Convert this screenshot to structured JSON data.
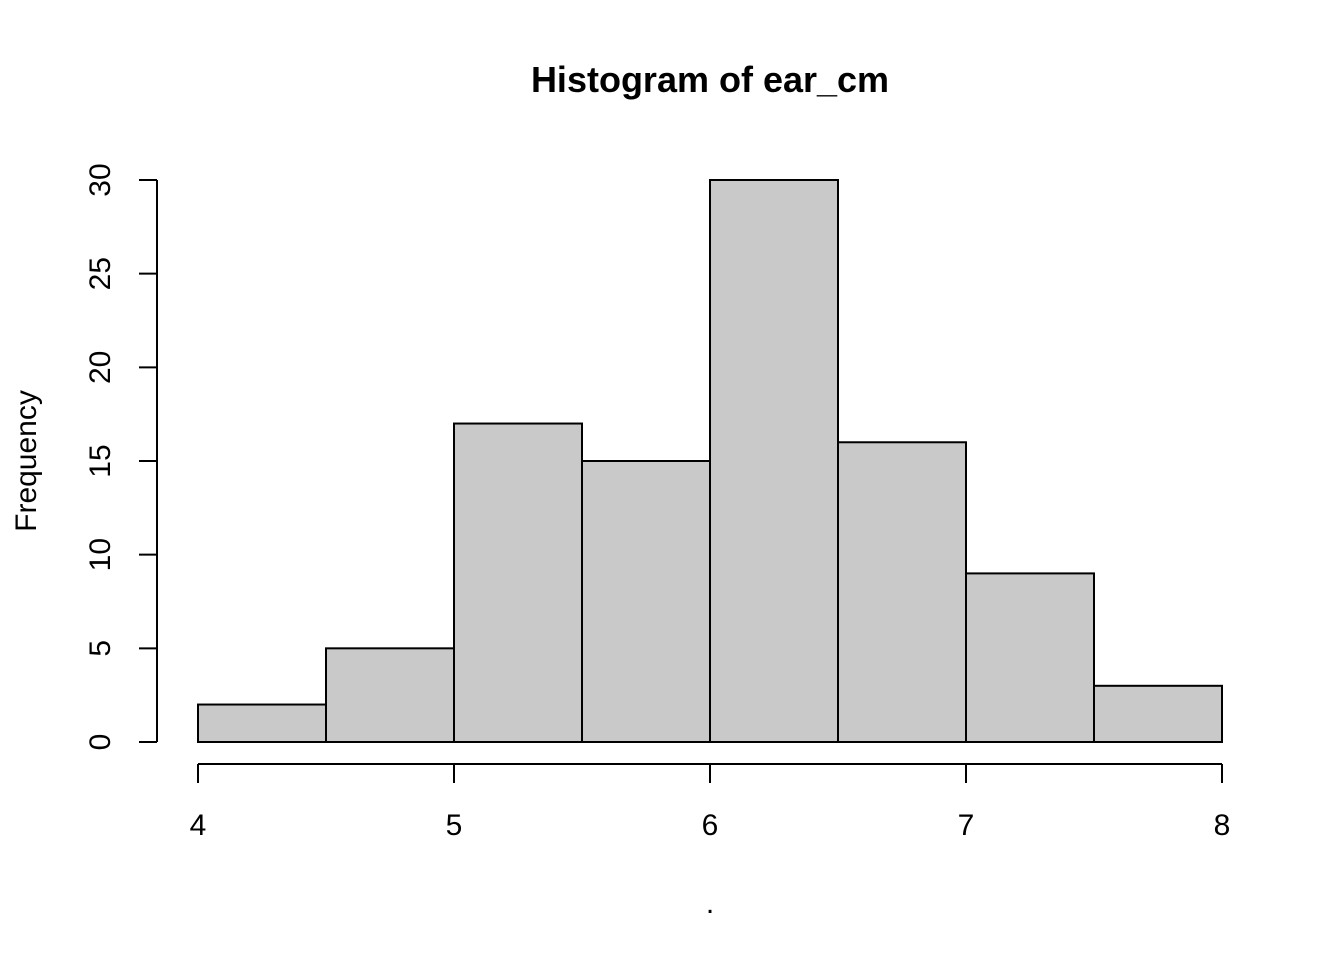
{
  "chart_data": {
    "type": "bar",
    "title": "Histogram of ear_cm",
    "xlabel": ".",
    "ylabel": "Frequency",
    "bins": [
      {
        "x0": 4.0,
        "x1": 4.5,
        "count": 2
      },
      {
        "x0": 4.5,
        "x1": 5.0,
        "count": 5
      },
      {
        "x0": 5.0,
        "x1": 5.5,
        "count": 17
      },
      {
        "x0": 5.5,
        "x1": 6.0,
        "count": 15
      },
      {
        "x0": 6.0,
        "x1": 6.5,
        "count": 30
      },
      {
        "x0": 6.5,
        "x1": 7.0,
        "count": 16
      },
      {
        "x0": 7.0,
        "x1": 7.5,
        "count": 9
      },
      {
        "x0": 7.5,
        "x1": 8.0,
        "count": 3
      }
    ],
    "xlim": [
      4,
      8
    ],
    "ylim": [
      0,
      30
    ],
    "x_ticks": [
      "4",
      "5",
      "6",
      "7",
      "8"
    ],
    "y_ticks": [
      "0",
      "5",
      "10",
      "15",
      "20",
      "25",
      "30"
    ],
    "grid": false,
    "bar_color": "#c9c9c9",
    "edge_color": "#000000"
  }
}
